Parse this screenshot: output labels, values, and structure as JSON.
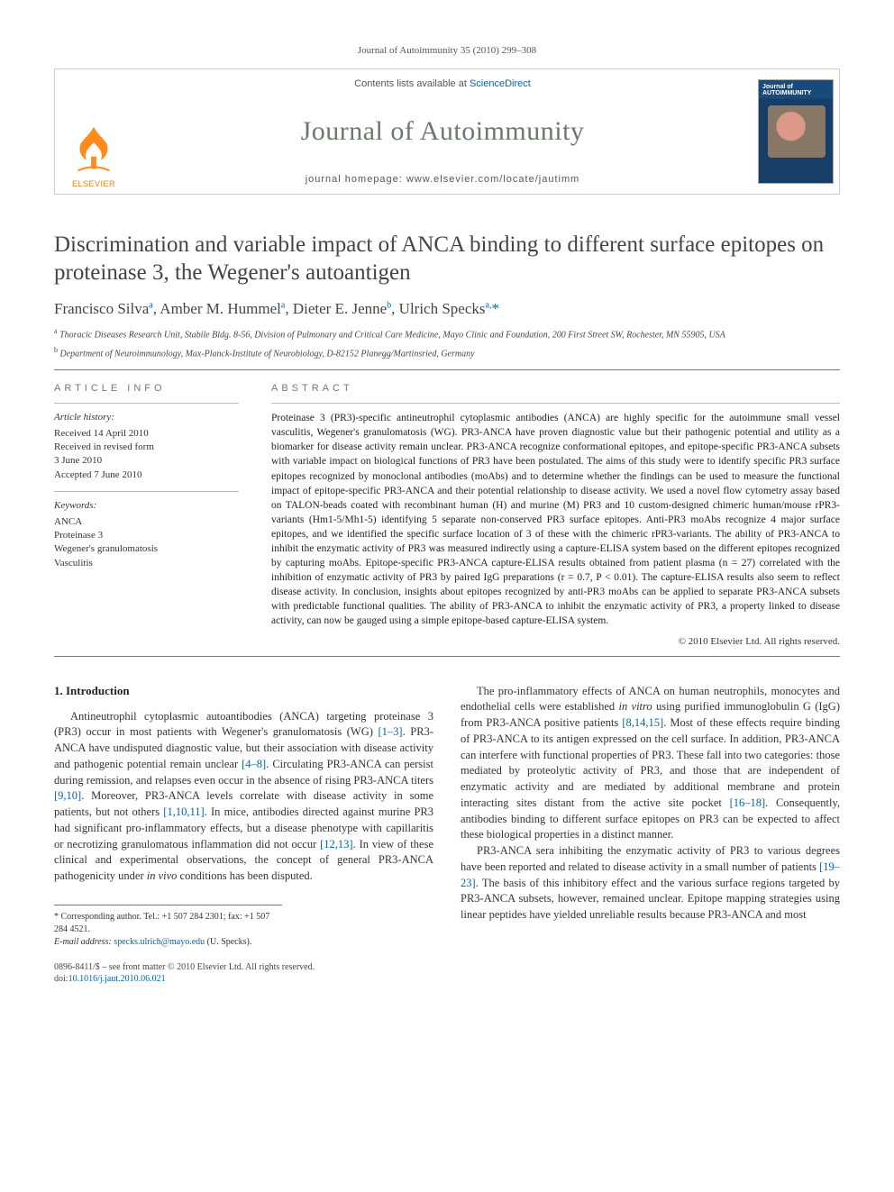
{
  "running_head": "Journal of Autoimmunity 35 (2010) 299–308",
  "masthead": {
    "contents_prefix": "Contents lists available at ",
    "contents_link": "ScienceDirect",
    "journal_name": "Journal of Autoimmunity",
    "homepage_label": "journal homepage: www.elsevier.com/locate/jautimm",
    "publisher_name": "ELSEVIER",
    "cover_title": "Journal of AUTOIMMUNITY"
  },
  "article": {
    "title": "Discrimination and variable impact of ANCA binding to different surface epitopes on proteinase 3, the Wegener's autoantigen",
    "authors_html": "Francisco Silva<sup>a</sup>, Amber M. Hummel<sup>a</sup>, Dieter E. Jenne<sup>b</sup>, Ulrich Specks<sup>a,</sup><span class='star'>*</span>",
    "affiliations": [
      {
        "sup": "a",
        "text": "Thoracic Diseases Research Unit, Stabile Bldg. 8-56, Division of Pulmonary and Critical Care Medicine, Mayo Clinic and Foundation, 200 First Street SW, Rochester, MN 55905, USA"
      },
      {
        "sup": "b",
        "text": "Department of Neuroimmunology, Max-Planck-Institute of Neurobiology, D-82152 Planegg/Martinsried, Germany"
      }
    ]
  },
  "article_info": {
    "heading": "ARTICLE INFO",
    "history_label": "Article history:",
    "history": [
      "Received 14 April 2010",
      "Received in revised form",
      "3 June 2010",
      "Accepted 7 June 2010"
    ],
    "keywords_label": "Keywords:",
    "keywords": [
      "ANCA",
      "Proteinase 3",
      "Wegener's granulomatosis",
      "Vasculitis"
    ]
  },
  "abstract": {
    "heading": "ABSTRACT",
    "text": "Proteinase 3 (PR3)-specific antineutrophil cytoplasmic antibodies (ANCA) are highly specific for the autoimmune small vessel vasculitis, Wegener's granulomatosis (WG). PR3-ANCA have proven diagnostic value but their pathogenic potential and utility as a biomarker for disease activity remain unclear. PR3-ANCA recognize conformational epitopes, and epitope-specific PR3-ANCA subsets with variable impact on biological functions of PR3 have been postulated. The aims of this study were to identify specific PR3 surface epitopes recognized by monoclonal antibodies (moAbs) and to determine whether the findings can be used to measure the functional impact of epitope-specific PR3-ANCA and their potential relationship to disease activity. We used a novel flow cytometry assay based on TALON-beads coated with recombinant human (H) and murine (M) PR3 and 10 custom-designed chimeric human/mouse rPR3-variants (Hm1-5/Mh1-5) identifying 5 separate non-conserved PR3 surface epitopes. Anti-PR3 moAbs recognize 4 major surface epitopes, and we identified the specific surface location of 3 of these with the chimeric rPR3-variants. The ability of PR3-ANCA to inhibit the enzymatic activity of PR3 was measured indirectly using a capture-ELISA system based on the different epitopes recognized by capturing moAbs. Epitope-specific PR3-ANCA capture-ELISA results obtained from patient plasma (n = 27) correlated with the inhibition of enzymatic activity of PR3 by paired IgG preparations (r = 0.7, P < 0.01). The capture-ELISA results also seem to reflect disease activity. In conclusion, insights about epitopes recognized by anti-PR3 moAbs can be applied to separate PR3-ANCA subsets with predictable functional qualities. The ability of PR3-ANCA to inhibit the enzymatic activity of PR3, a property linked to disease activity, can now be gauged using a simple epitope-based capture-ELISA system.",
    "copyright": "© 2010 Elsevier Ltd. All rights reserved."
  },
  "body": {
    "intro_heading": "1. Introduction",
    "left_paragraph": "Antineutrophil cytoplasmic autoantibodies (ANCA) targeting proteinase 3 (PR3) occur in most patients with Wegener's granulomatosis (WG) [1–3]. PR3-ANCA have undisputed diagnostic value, but their association with disease activity and pathogenic potential remain unclear [4–8]. Circulating PR3-ANCA can persist during remission, and relapses even occur in the absence of rising PR3-ANCA titers [9,10]. Moreover, PR3-ANCA levels correlate with disease activity in some patients, but not others [1,10,11]. In mice, antibodies directed against murine PR3 had significant pro-inflammatory effects, but a disease phenotype with capillaritis or necrotizing granulomatous inflammation did not occur [12,13]. In view of these clinical and experimental observations, the concept of general PR3-ANCA pathogenicity under in vivo conditions has been disputed.",
    "right_p1": "The pro-inflammatory effects of ANCA on human neutrophils, monocytes and endothelial cells were established in vitro using purified immunoglobulin G (IgG) from PR3-ANCA positive patients [8,14,15]. Most of these effects require binding of PR3-ANCA to its antigen expressed on the cell surface. In addition, PR3-ANCA can interfere with functional properties of PR3. These fall into two categories: those mediated by proteolytic activity of PR3, and those that are independent of enzymatic activity and are mediated by additional membrane and protein interacting sites distant from the active site pocket [16–18]. Consequently, antibodies binding to different surface epitopes on PR3 can be expected to affect these biological properties in a distinct manner.",
    "right_p2": "PR3-ANCA sera inhibiting the enzymatic activity of PR3 to various degrees have been reported and related to disease activity in a small number of patients [19–23]. The basis of this inhibitory effect and the various surface regions targeted by PR3-ANCA subsets, however, remained unclear. Epitope mapping strategies using linear peptides have yielded unreliable results because PR3-ANCA and most"
  },
  "corresponding": {
    "line1": "* Corresponding author. Tel.: +1 507 284 2301; fax: +1 507 284 4521.",
    "email_label": "E-mail address: ",
    "email": "specks.ulrich@mayo.edu",
    "email_suffix": " (U. Specks)."
  },
  "footer": {
    "line1": "0896-8411/$ – see front matter © 2010 Elsevier Ltd. All rights reserved.",
    "doi_prefix": "doi:",
    "doi": "10.1016/j.jaut.2010.06.021"
  },
  "cites": {
    "c1": "[1–3]",
    "c2": "[4–8]",
    "c3": "[9,10]",
    "c4": "[1,10,11]",
    "c5": "[12,13]",
    "c6": "[8,14,15]",
    "c7": "[16–18]",
    "c8": "[19–23]"
  }
}
